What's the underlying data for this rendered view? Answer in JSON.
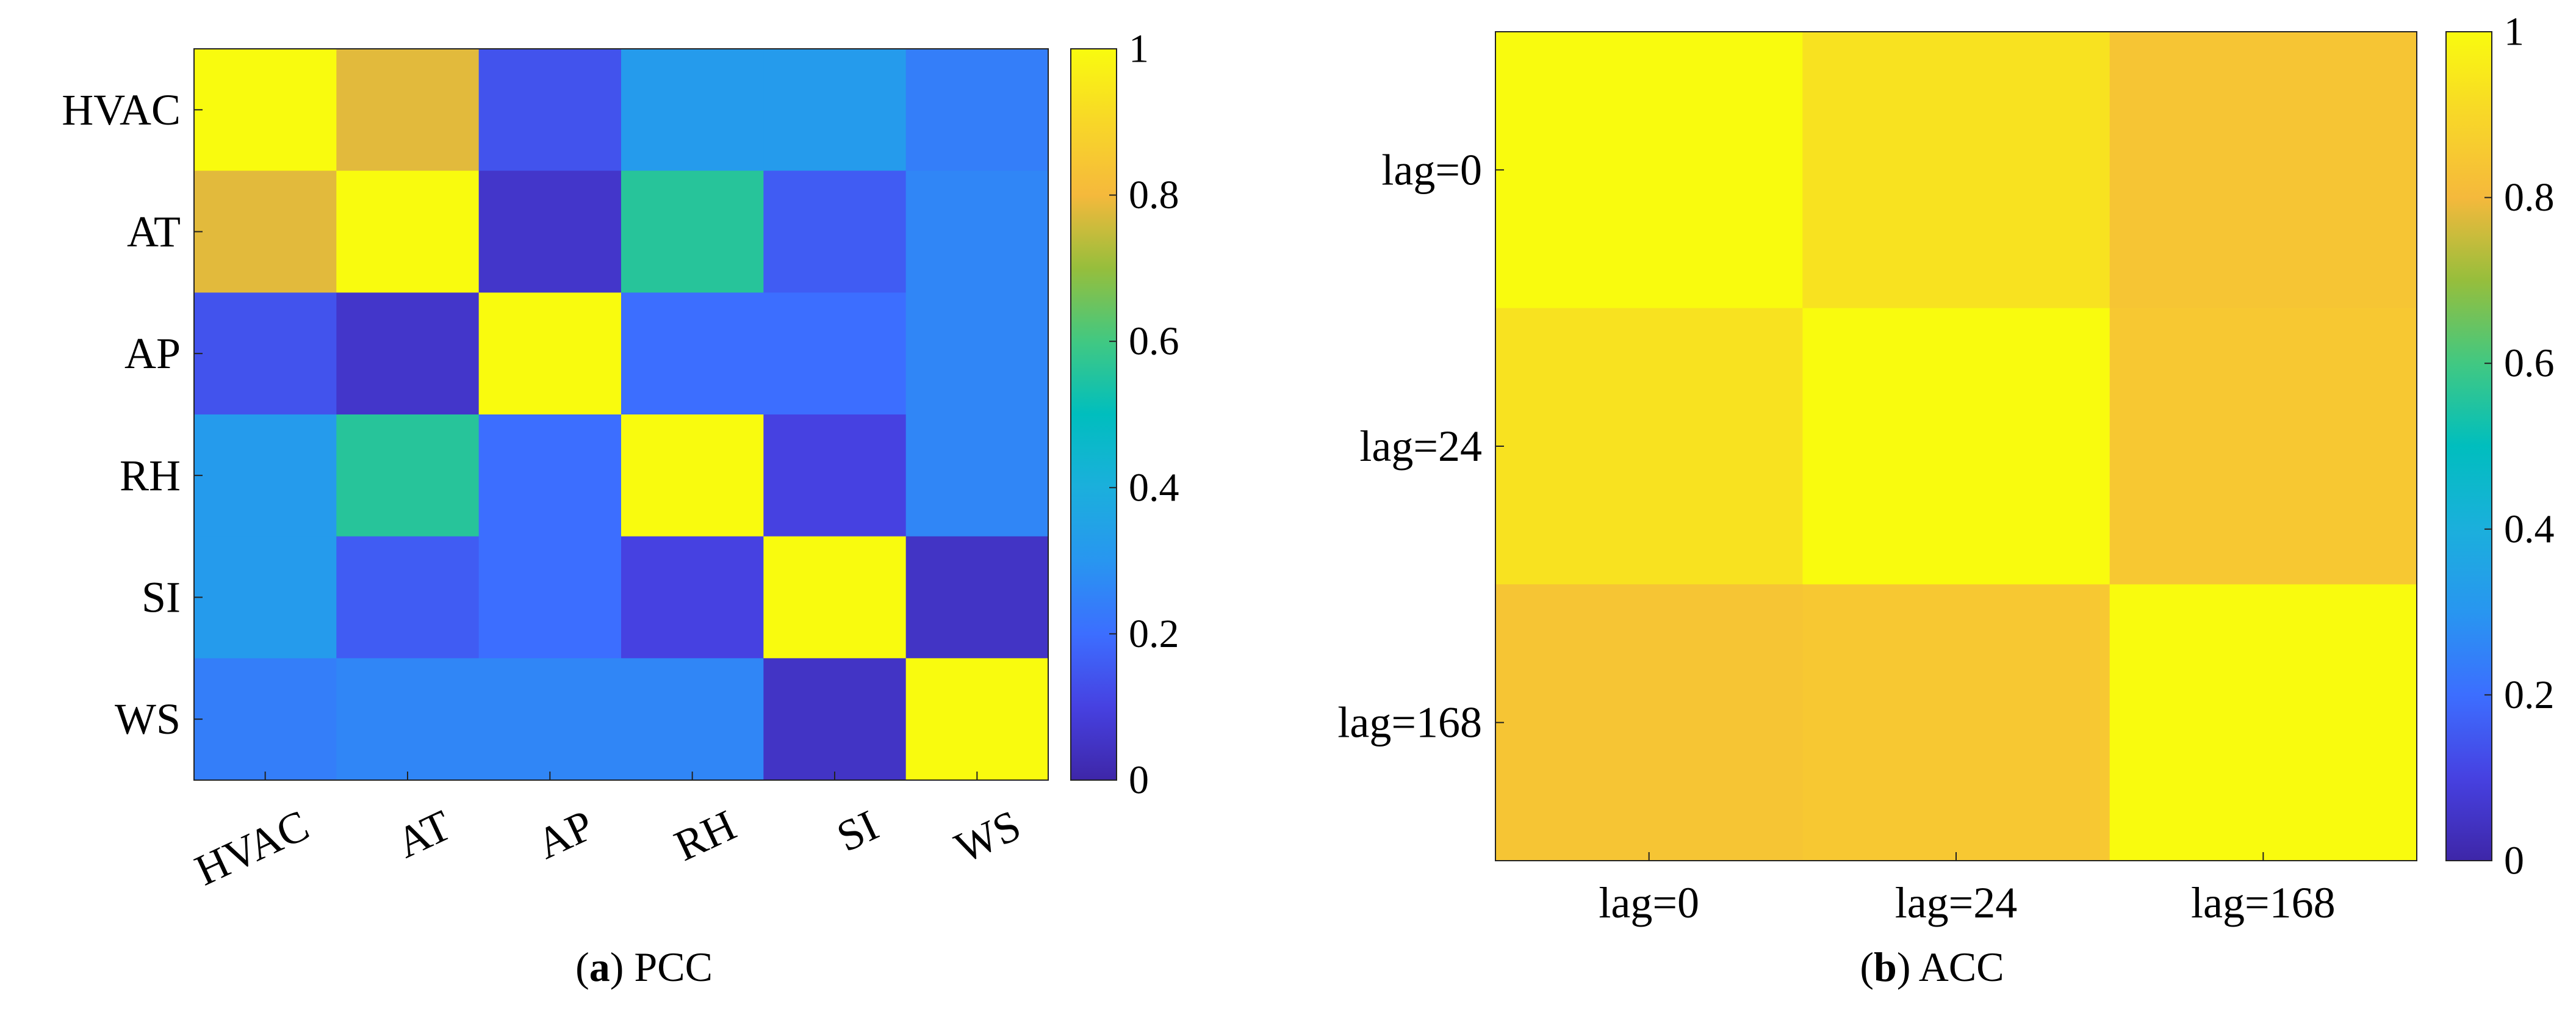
{
  "colormap": "parula",
  "chart_data": [
    {
      "type": "heatmap",
      "x_labels": [
        "HVAC",
        "AT",
        "AP",
        "RH",
        "SI",
        "WS"
      ],
      "y_labels": [
        "HVAC",
        "AT",
        "AP",
        "RH",
        "SI",
        "WS"
      ],
      "values": [
        [
          1.0,
          0.78,
          0.14,
          0.32,
          0.32,
          0.24
        ],
        [
          0.78,
          1.0,
          0.06,
          0.56,
          0.16,
          0.26
        ],
        [
          0.14,
          0.06,
          1.0,
          0.2,
          0.2,
          0.26
        ],
        [
          0.32,
          0.56,
          0.2,
          1.0,
          0.1,
          0.26
        ],
        [
          0.32,
          0.16,
          0.2,
          0.1,
          1.0,
          0.05
        ],
        [
          0.24,
          0.26,
          0.26,
          0.26,
          0.05,
          1.0
        ]
      ],
      "x_tick_rotation": "angled",
      "colorbar": {
        "range": [
          0,
          1
        ],
        "ticks": [
          "0",
          "0.2",
          "0.4",
          "0.6",
          "0.8",
          "1"
        ],
        "position": "right"
      },
      "caption": {
        "letter": "a",
        "text": "PCC"
      }
    },
    {
      "type": "heatmap",
      "x_labels": [
        "lag=0",
        "lag=24",
        "lag=168"
      ],
      "y_labels": [
        "lag=0",
        "lag=24",
        "lag=168"
      ],
      "values": [
        [
          1.0,
          0.93,
          0.84
        ],
        [
          0.93,
          1.0,
          0.85
        ],
        [
          0.84,
          0.85,
          1.0
        ]
      ],
      "x_tick_rotation": "none",
      "colorbar": {
        "range": [
          0,
          1
        ],
        "ticks": [
          "0",
          "0.2",
          "0.4",
          "0.6",
          "0.8",
          "1"
        ],
        "position": "right"
      },
      "caption": {
        "letter": "b",
        "text": "ACC"
      }
    }
  ]
}
